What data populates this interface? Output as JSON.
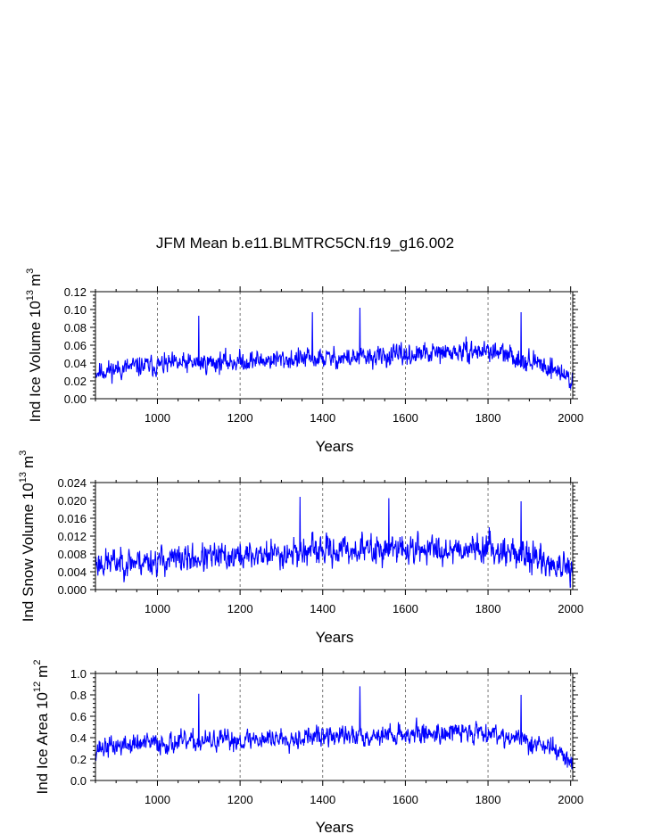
{
  "title": "JFM Mean b.e11.BLMTRC5CN.f19_g16.002",
  "chart_data": [
    {
      "type": "line",
      "id": "ice-volume",
      "ylabel_main": "Ind Ice Volume 10",
      "ylabel_exp": "13",
      "ylabel_unit": "m",
      "ylabel_unit_exp": "3",
      "xlabel": "Years",
      "xlim": [
        850,
        2005
      ],
      "ylim": [
        0.0,
        0.12
      ],
      "xticks": [
        "1000",
        "1200",
        "1400",
        "1600",
        "1800",
        "2000"
      ],
      "yticks": [
        "0.00",
        "0.02",
        "0.04",
        "0.06",
        "0.08",
        "0.10",
        "0.12"
      ],
      "grid_x": true,
      "series": [
        {
          "name": "Ind Ice Volume",
          "color": "#0000ff",
          "base": [
            [
              850,
              0.03
            ],
            [
              950,
              0.036
            ],
            [
              1100,
              0.04
            ],
            [
              1300,
              0.044
            ],
            [
              1500,
              0.046
            ],
            [
              1650,
              0.05
            ],
            [
              1800,
              0.054
            ],
            [
              1900,
              0.042
            ],
            [
              1960,
              0.034
            ],
            [
              2005,
              0.02
            ]
          ],
          "noise": 0.01,
          "seed": 11,
          "spikes": [
            [
              1100,
              0.093
            ],
            [
              1375,
              0.097
            ],
            [
              1490,
              0.102
            ],
            [
              1880,
              0.097
            ]
          ]
        }
      ]
    },
    {
      "type": "line",
      "id": "snow-volume",
      "ylabel_main": "Ind Snow Volume 10",
      "ylabel_exp": "13",
      "ylabel_unit": "m",
      "ylabel_unit_exp": "3",
      "xlabel": "Years",
      "xlim": [
        850,
        2005
      ],
      "ylim": [
        0.0,
        0.024
      ],
      "xticks": [
        "1000",
        "1200",
        "1400",
        "1600",
        "1800",
        "2000"
      ],
      "yticks": [
        "0.000",
        "0.004",
        "0.008",
        "0.012",
        "0.016",
        "0.020",
        "0.024"
      ],
      "grid_x": true,
      "series": [
        {
          "name": "Ind Snow Volume",
          "color": "#0000ff",
          "base": [
            [
              850,
              0.006
            ],
            [
              1000,
              0.0065
            ],
            [
              1200,
              0.0075
            ],
            [
              1350,
              0.0085
            ],
            [
              1500,
              0.009
            ],
            [
              1650,
              0.009
            ],
            [
              1800,
              0.0095
            ],
            [
              1900,
              0.0075
            ],
            [
              1960,
              0.0055
            ],
            [
              2005,
              0.0035
            ]
          ],
          "noise": 0.0028,
          "seed": 23,
          "spikes": [
            [
              1345,
              0.0208
            ],
            [
              1560,
              0.0205
            ],
            [
              1880,
              0.0198
            ]
          ]
        }
      ]
    },
    {
      "type": "line",
      "id": "ice-area",
      "ylabel_main": "Ind Ice Area 10",
      "ylabel_exp": "12",
      "ylabel_unit": "m",
      "ylabel_unit_exp": "2",
      "xlabel": "Years",
      "xlim": [
        850,
        2005
      ],
      "ylim": [
        0.0,
        1.0
      ],
      "xticks": [
        "1000",
        "1200",
        "1400",
        "1600",
        "1800",
        "2000"
      ],
      "yticks": [
        "0.0",
        "0.2",
        "0.4",
        "0.6",
        "0.8",
        "1.0"
      ],
      "grid_x": true,
      "series": [
        {
          "name": "Ind Ice Area",
          "color": "#0000ff",
          "base": [
            [
              850,
              0.3
            ],
            [
              950,
              0.34
            ],
            [
              1100,
              0.36
            ],
            [
              1300,
              0.4
            ],
            [
              1500,
              0.42
            ],
            [
              1650,
              0.44
            ],
            [
              1800,
              0.46
            ],
            [
              1900,
              0.36
            ],
            [
              1960,
              0.3
            ],
            [
              2005,
              0.15
            ]
          ],
          "noise": 0.085,
          "seed": 37,
          "spikes": [
            [
              1100,
              0.81
            ],
            [
              1490,
              0.88
            ],
            [
              1880,
              0.8
            ]
          ]
        }
      ]
    }
  ]
}
